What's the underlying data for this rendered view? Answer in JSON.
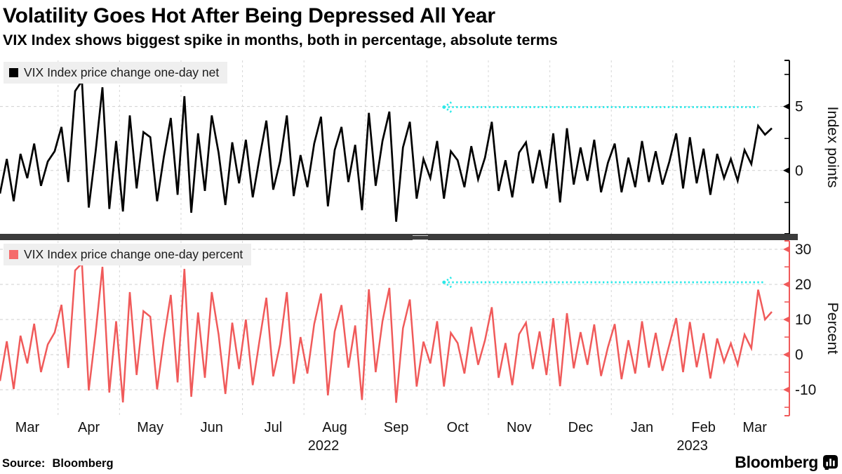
{
  "header": {
    "title": "Volatility Goes Hot After Being Depressed All Year",
    "subtitle": "VIX Index shows biggest spike in months, both in percentage, absolute terms"
  },
  "footer": {
    "source_label": "Source:",
    "source_value": "Bloomberg",
    "brand": "Bloomberg"
  },
  "colors": {
    "net_line": "#000000",
    "percent_line": "#f05a5a",
    "percent_axis": "#f05a5a",
    "annotation_cyan": "#2be9e9",
    "grid": "#cfcfcf",
    "separator": "#3b3b3b",
    "legend_bg": "#efefef"
  },
  "chart_data": {
    "type": "line",
    "title": "Volatility Goes Hot After Being Depressed All Year",
    "subtitle": "VIX Index shows biggest spike in months, both in percentage, absolute terms",
    "grid": true,
    "legend_position": "top-left-inside",
    "x": {
      "n_points": 114,
      "months": [
        {
          "label": "Mar",
          "start": 0
        },
        {
          "label": "Apr",
          "start": 9
        },
        {
          "label": "May",
          "start": 18
        },
        {
          "label": "Jun",
          "start": 27
        },
        {
          "label": "Jul",
          "start": 36
        },
        {
          "label": "Aug",
          "start": 45
        },
        {
          "label": "Sep",
          "start": 54
        },
        {
          "label": "Oct",
          "start": 63
        },
        {
          "label": "Nov",
          "start": 72
        },
        {
          "label": "Dec",
          "start": 81
        },
        {
          "label": "Jan",
          "start": 90
        },
        {
          "label": "Feb",
          "start": 99
        },
        {
          "label": "Mar",
          "start": 108
        }
      ],
      "years": [
        {
          "label": "2022",
          "month_index": 5
        },
        {
          "label": "2023",
          "month_index": 11
        }
      ]
    },
    "panels": [
      {
        "name": "net",
        "legend": "VIX Index price change one-day net",
        "color": "#000000",
        "axis_color": "#000000",
        "ylabel": "Index points",
        "ylim": [
          -4.95,
          8.6
        ],
        "yticks_major": [
          5,
          0
        ],
        "yticks_minor": [
          7.5,
          2.5,
          -2.5
        ],
        "arrow": {
          "value": 4.95,
          "from_index": 65,
          "to_index": 111,
          "color": "#2be9e9"
        },
        "values": [
          -1.8,
          0.9,
          -2.4,
          1.3,
          -0.6,
          2.1,
          -1.2,
          0.7,
          1.5,
          3.4,
          -0.9,
          6.2,
          7.0,
          -2.9,
          1.5,
          6.5,
          -3.0,
          2.3,
          -3.2,
          4.3,
          -1.4,
          3.0,
          2.6,
          -2.4,
          1.1,
          4.1,
          -1.9,
          5.8,
          -3.3,
          2.9,
          -1.6,
          4.3,
          1.4,
          -2.7,
          2.2,
          -1.0,
          2.4,
          -2.1,
          1.0,
          3.9,
          -1.5,
          0.7,
          4.3,
          -2.0,
          1.2,
          -1.3,
          2.1,
          4.2,
          -2.8,
          1.6,
          3.4,
          -0.9,
          2.0,
          -3.1,
          4.5,
          -1.2,
          2.3,
          4.6,
          -4.0,
          1.8,
          3.8,
          -2.2,
          0.9,
          -0.6,
          2.3,
          -2.2,
          1.5,
          0.8,
          -1.3,
          1.9,
          -0.7,
          1.0,
          3.8,
          -1.6,
          0.8,
          -2.1,
          1.4,
          2.2,
          -1.0,
          1.6,
          -1.4,
          2.9,
          -2.5,
          3.3,
          -1.1,
          1.8,
          -0.8,
          2.4,
          -1.7,
          0.6,
          2.1,
          -1.7,
          1.0,
          -1.3,
          2.3,
          -0.9,
          1.5,
          -1.1,
          0.7,
          2.9,
          -1.4,
          2.6,
          -1.0,
          1.7,
          -1.9,
          1.3,
          -0.6,
          0.9,
          -0.8,
          1.6,
          0.5,
          3.5,
          2.8,
          3.3
        ]
      },
      {
        "name": "percent",
        "legend": "VIX Index price change one-day percent",
        "color": "#f05a5a",
        "axis_color": "#f05a5a",
        "ylabel": "Percent",
        "ylim": [
          -17.4,
          32.4
        ],
        "yticks_major": [
          30,
          20,
          10,
          0,
          -10
        ],
        "yticks_minor": [
          25,
          15,
          5,
          -5,
          -15
        ],
        "arrow": {
          "value": 20.6,
          "from_index": 65,
          "to_index": 112,
          "color": "#2be9e9"
        },
        "values": [
          -7.5,
          3.8,
          -9.8,
          5.4,
          -2.5,
          8.8,
          -5.0,
          2.9,
          6.3,
          14.2,
          -3.8,
          24.0,
          26.0,
          -10.2,
          6.2,
          25.0,
          -10.8,
          9.5,
          -13.6,
          17.8,
          -5.8,
          12.4,
          10.8,
          -9.9,
          4.6,
          17.0,
          -7.9,
          24.4,
          -12.0,
          12.0,
          -6.6,
          17.8,
          5.8,
          -11.2,
          9.1,
          -4.1,
          10.0,
          -8.7,
          4.1,
          16.2,
          -6.2,
          2.9,
          17.8,
          -8.3,
          5.0,
          -5.4,
          8.7,
          17.4,
          -11.6,
          6.6,
          14.1,
          -3.7,
          8.3,
          -12.9,
          18.6,
          -5.0,
          9.5,
          19.0,
          -13.7,
          7.5,
          15.7,
          -9.1,
          3.7,
          -2.5,
          9.5,
          -9.1,
          6.2,
          3.3,
          -5.4,
          7.9,
          -2.9,
          4.1,
          13.5,
          -6.6,
          3.3,
          -8.7,
          5.8,
          9.1,
          -4.1,
          6.6,
          -5.8,
          10.4,
          -9.0,
          11.8,
          -3.9,
          6.4,
          -2.9,
          8.6,
          -6.1,
          2.1,
          8.7,
          -7.0,
          4.1,
          -5.4,
          9.5,
          -3.7,
          6.2,
          -4.6,
          2.9,
          10.4,
          -5.0,
          9.3,
          -3.6,
          6.1,
          -6.8,
          4.6,
          -2.1,
          3.2,
          -2.9,
          5.7,
          1.8,
          18.5,
          10.0,
          12.2
        ]
      }
    ]
  }
}
